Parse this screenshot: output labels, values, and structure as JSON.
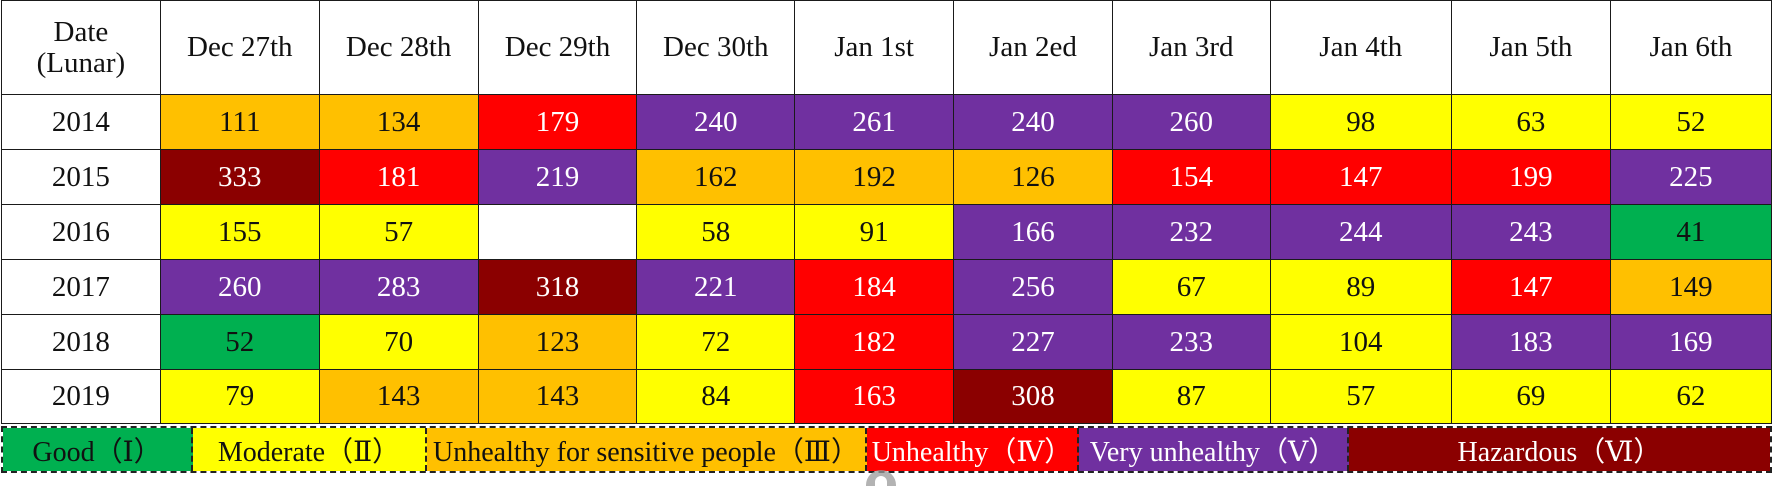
{
  "table": {
    "corner_line1": "Date",
    "corner_line2": "(Lunar)",
    "columns": [
      "Dec 27th",
      "Dec 28th",
      "Dec 29th",
      "Dec 30th",
      "Jan 1st",
      "Jan 2ed",
      "Jan 3rd",
      "Jan 4th",
      "Jan 5th",
      "Jan 6th"
    ],
    "rows": [
      {
        "year": "2014",
        "cells": [
          {
            "value": "111",
            "level": "III"
          },
          {
            "value": "134",
            "level": "III"
          },
          {
            "value": "179",
            "level": "IV"
          },
          {
            "value": "240",
            "level": "V"
          },
          {
            "value": "261",
            "level": "V"
          },
          {
            "value": "240",
            "level": "V"
          },
          {
            "value": "260",
            "level": "V"
          },
          {
            "value": "98",
            "level": "II"
          },
          {
            "value": "63",
            "level": "II"
          },
          {
            "value": "52",
            "level": "II"
          }
        ]
      },
      {
        "year": "2015",
        "cells": [
          {
            "value": "333",
            "level": "VI"
          },
          {
            "value": "181",
            "level": "IV"
          },
          {
            "value": "219",
            "level": "V"
          },
          {
            "value": "162",
            "level": "III"
          },
          {
            "value": "192",
            "level": "III"
          },
          {
            "value": "126",
            "level": "III"
          },
          {
            "value": "154",
            "level": "IV"
          },
          {
            "value": "147",
            "level": "IV"
          },
          {
            "value": "199",
            "level": "IV"
          },
          {
            "value": "225",
            "level": "V"
          }
        ]
      },
      {
        "year": "2016",
        "cells": [
          {
            "value": "155",
            "level": "II"
          },
          {
            "value": "57",
            "level": "II"
          },
          {
            "value": "",
            "level": "blank"
          },
          {
            "value": "58",
            "level": "II"
          },
          {
            "value": "91",
            "level": "II"
          },
          {
            "value": "166",
            "level": "V"
          },
          {
            "value": "232",
            "level": "V"
          },
          {
            "value": "244",
            "level": "V"
          },
          {
            "value": "243",
            "level": "V"
          },
          {
            "value": "41",
            "level": "I"
          }
        ]
      },
      {
        "year": "2017",
        "cells": [
          {
            "value": "260",
            "level": "V"
          },
          {
            "value": "283",
            "level": "V"
          },
          {
            "value": "318",
            "level": "VI"
          },
          {
            "value": "221",
            "level": "V"
          },
          {
            "value": "184",
            "level": "IV"
          },
          {
            "value": "256",
            "level": "V"
          },
          {
            "value": "67",
            "level": "II"
          },
          {
            "value": "89",
            "level": "II"
          },
          {
            "value": "147",
            "level": "IV"
          },
          {
            "value": "149",
            "level": "III"
          }
        ]
      },
      {
        "year": "2018",
        "cells": [
          {
            "value": "52",
            "level": "I"
          },
          {
            "value": "70",
            "level": "II"
          },
          {
            "value": "123",
            "level": "III"
          },
          {
            "value": "72",
            "level": "II"
          },
          {
            "value": "182",
            "level": "IV"
          },
          {
            "value": "227",
            "level": "V"
          },
          {
            "value": "233",
            "level": "V"
          },
          {
            "value": "104",
            "level": "II"
          },
          {
            "value": "183",
            "level": "V"
          },
          {
            "value": "169",
            "level": "V"
          }
        ]
      },
      {
        "year": "2019",
        "cells": [
          {
            "value": "79",
            "level": "II"
          },
          {
            "value": "143",
            "level": "III"
          },
          {
            "value": "143",
            "level": "III"
          },
          {
            "value": "84",
            "level": "II"
          },
          {
            "value": "163",
            "level": "IV"
          },
          {
            "value": "308",
            "level": "VI"
          },
          {
            "value": "87",
            "level": "II"
          },
          {
            "value": "57",
            "level": "II"
          },
          {
            "value": "69",
            "level": "II"
          },
          {
            "value": "62",
            "level": "II"
          }
        ]
      }
    ]
  },
  "levels": {
    "I": {
      "color": "#00b050",
      "text_color": "#111111"
    },
    "II": {
      "color": "#ffff00",
      "text_color": "#111111"
    },
    "III": {
      "color": "#ffc000",
      "text_color": "#111111"
    },
    "IV": {
      "color": "#ff0000",
      "text_color": "#ffffff"
    },
    "V": {
      "color": "#7030a0",
      "text_color": "#ffffff"
    },
    "VI": {
      "color": "#8b0000",
      "text_color": "#ffffff"
    },
    "blank": {
      "color": "#ffffff",
      "text_color": "#111111"
    }
  },
  "legend": [
    {
      "label": "Good（Ⅰ）",
      "level": "I"
    },
    {
      "label": "Moderate（Ⅱ）",
      "level": "II"
    },
    {
      "label": "Unhealthy for sensitive people（Ⅲ）",
      "level": "III"
    },
    {
      "label": "Unhealthy（Ⅳ）",
      "level": "IV"
    },
    {
      "label": "Very unhealthy（Ⅴ）",
      "level": "V"
    },
    {
      "label": "Hazardous（Ⅵ）",
      "level": "VI"
    }
  ]
}
